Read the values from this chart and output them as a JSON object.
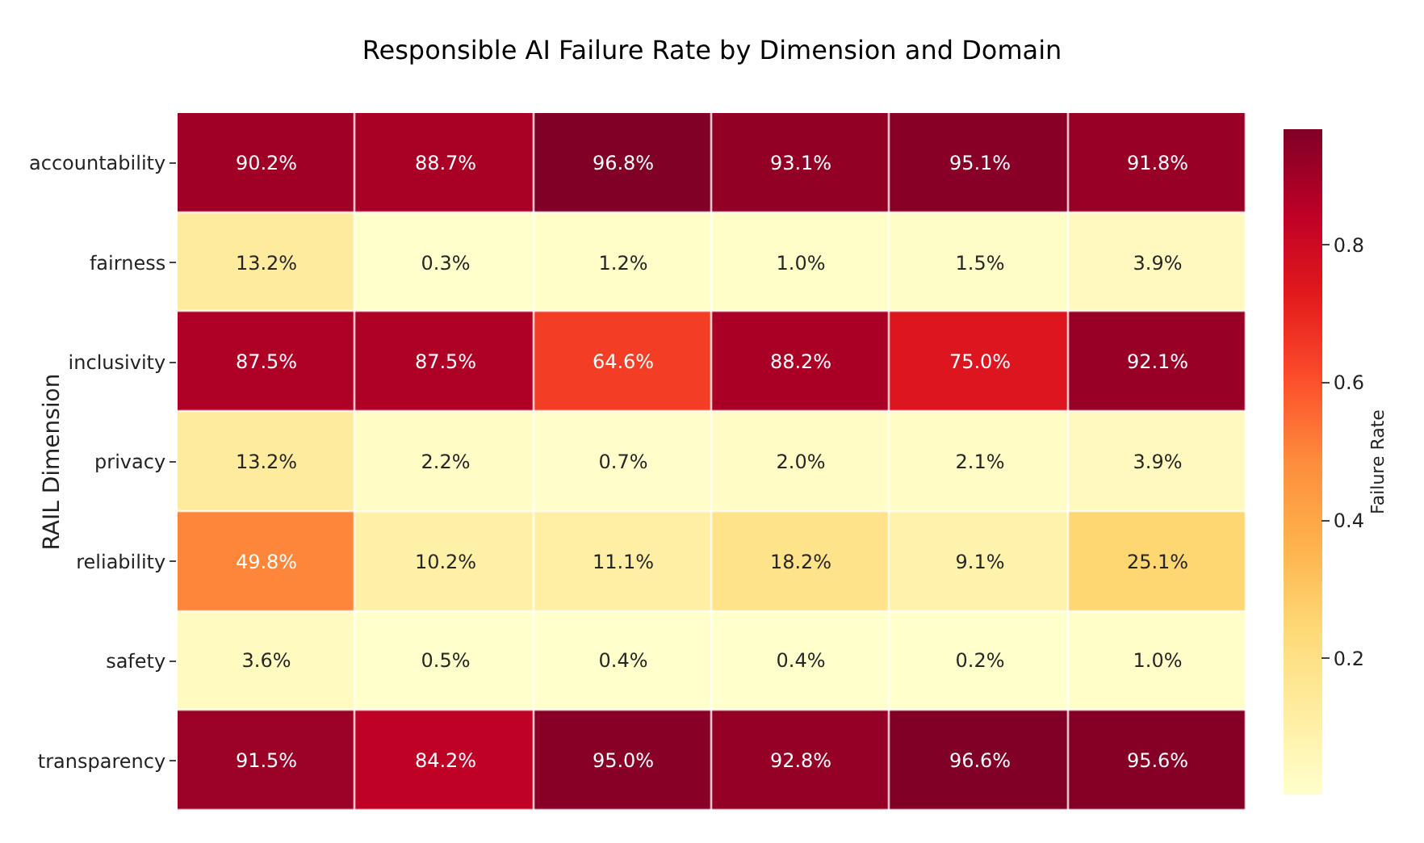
{
  "chart_data": {
    "type": "heatmap",
    "title": "Responsible AI Failure Rate by Dimension and Domain",
    "ylabel": "RAIL Dimension",
    "clabel": "Failure Rate",
    "categories": [
      null,
      null,
      null,
      null,
      null,
      null
    ],
    "y_categories": [
      "accountability",
      "fairness",
      "inclusivity",
      "privacy",
      "reliability",
      "safety",
      "transparency"
    ],
    "cells": [
      [
        0.902,
        0.887,
        0.968,
        0.931,
        0.951,
        0.918
      ],
      [
        0.132,
        0.003,
        0.012,
        0.01,
        0.015,
        0.039
      ],
      [
        0.875,
        0.875,
        0.646,
        0.882,
        0.75,
        0.921
      ],
      [
        0.132,
        0.022,
        0.007,
        0.02,
        0.021,
        0.039
      ],
      [
        0.498,
        0.102,
        0.111,
        0.182,
        0.091,
        0.251
      ],
      [
        0.036,
        0.005,
        0.004,
        0.004,
        0.002,
        0.01
      ],
      [
        0.915,
        0.842,
        0.95,
        0.928,
        0.966,
        0.956
      ]
    ],
    "cell_labels": [
      [
        "90.2%",
        "88.7%",
        "96.8%",
        "93.1%",
        "95.1%",
        "91.8%"
      ],
      [
        "13.2%",
        "0.3%",
        "1.2%",
        "1.0%",
        "1.5%",
        "3.9%"
      ],
      [
        "87.5%",
        "87.5%",
        "64.6%",
        "88.2%",
        "75.0%",
        "92.1%"
      ],
      [
        "13.2%",
        "2.2%",
        "0.7%",
        "2.0%",
        "2.1%",
        "3.9%"
      ],
      [
        "49.8%",
        "10.2%",
        "11.1%",
        "18.2%",
        "9.1%",
        "25.1%"
      ],
      [
        "3.6%",
        "0.5%",
        "0.4%",
        "0.4%",
        "0.2%",
        "1.0%"
      ],
      [
        "91.5%",
        "84.2%",
        "95.0%",
        "92.8%",
        "96.6%",
        "95.6%"
      ]
    ],
    "clim": [
      0.002,
      0.968
    ],
    "cticks": [
      0.2,
      0.4,
      0.6,
      0.8
    ]
  }
}
